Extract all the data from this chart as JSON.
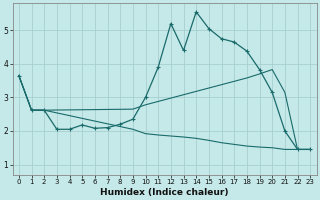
{
  "xlabel": "Humidex (Indice chaleur)",
  "background_color": "#c5e8e8",
  "grid_color": "#a8d0d0",
  "line_color": "#1a6b6b",
  "xlim": [
    -0.5,
    23.5
  ],
  "ylim": [
    0.7,
    5.8
  ],
  "xticks": [
    0,
    1,
    2,
    3,
    4,
    5,
    6,
    7,
    8,
    9,
    10,
    11,
    12,
    13,
    14,
    15,
    16,
    17,
    18,
    19,
    20,
    21,
    22,
    23
  ],
  "yticks": [
    1,
    2,
    3,
    4,
    5
  ],
  "series1_x": [
    0,
    1,
    2,
    3,
    4,
    5,
    6,
    7,
    8,
    9,
    10,
    11,
    12,
    13,
    14,
    15,
    16,
    17,
    18,
    19,
    20,
    21,
    22,
    23
  ],
  "series1_y": [
    3.65,
    2.62,
    2.62,
    2.05,
    2.05,
    2.18,
    2.08,
    2.1,
    2.2,
    2.35,
    3.0,
    3.9,
    5.2,
    4.4,
    5.55,
    5.05,
    4.75,
    4.65,
    4.38,
    3.83,
    3.15,
    2.0,
    1.45,
    1.45
  ],
  "series2_x": [
    0,
    1,
    2,
    9,
    10,
    11,
    12,
    13,
    14,
    15,
    16,
    17,
    18,
    19,
    20,
    21,
    22,
    23
  ],
  "series2_y": [
    3.65,
    2.62,
    2.62,
    2.65,
    2.78,
    2.88,
    2.98,
    3.08,
    3.18,
    3.28,
    3.38,
    3.48,
    3.58,
    3.7,
    3.83,
    3.15,
    1.45,
    1.45
  ],
  "series3_x": [
    0,
    1,
    2,
    9,
    10,
    11,
    12,
    13,
    14,
    15,
    16,
    17,
    18,
    19,
    20,
    21,
    22,
    23
  ],
  "series3_y": [
    3.65,
    2.62,
    2.62,
    2.05,
    1.92,
    1.88,
    1.85,
    1.82,
    1.78,
    1.72,
    1.65,
    1.6,
    1.55,
    1.52,
    1.5,
    1.45,
    1.45,
    1.45
  ]
}
